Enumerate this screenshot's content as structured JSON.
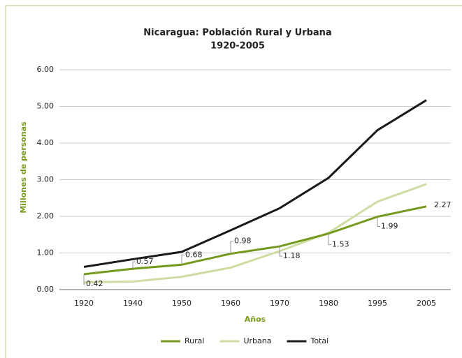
{
  "chart_data": {
    "type": "line",
    "title": "Nicaragua: Población Rural y Urbana",
    "subtitle": "1920-2005",
    "x_label": "Años",
    "y_label": "Millones de personas",
    "categories": [
      "1920",
      "1940",
      "1950",
      "1960",
      "1970",
      "1980",
      "1995",
      "2005"
    ],
    "series": [
      {
        "name": "Rural",
        "color": "#739a1c",
        "values": [
          0.42,
          0.57,
          0.68,
          0.98,
          1.18,
          1.53,
          1.99,
          2.27
        ],
        "show_labels": true
      },
      {
        "name": "Urbana",
        "color": "#cddca3",
        "values": [
          0.2,
          0.22,
          0.35,
          0.6,
          1.05,
          1.55,
          2.4,
          2.88
        ]
      },
      {
        "name": "Total",
        "color": "#1a1a1a",
        "values": [
          0.62,
          0.83,
          1.03,
          1.62,
          2.22,
          3.05,
          4.35,
          5.17
        ]
      }
    ],
    "ylim": [
      0,
      6
    ],
    "yticks": [
      {
        "value": 0,
        "label": "0.00"
      },
      {
        "value": 1,
        "label": "1.00"
      },
      {
        "value": 2,
        "label": "2.00"
      },
      {
        "value": 3,
        "label": "3.00"
      },
      {
        "value": 4,
        "label": "4.00"
      },
      {
        "value": 5,
        "label": "5.00"
      },
      {
        "value": 6,
        "label": "6.00"
      }
    ],
    "grid": true,
    "legend": "bottom"
  }
}
